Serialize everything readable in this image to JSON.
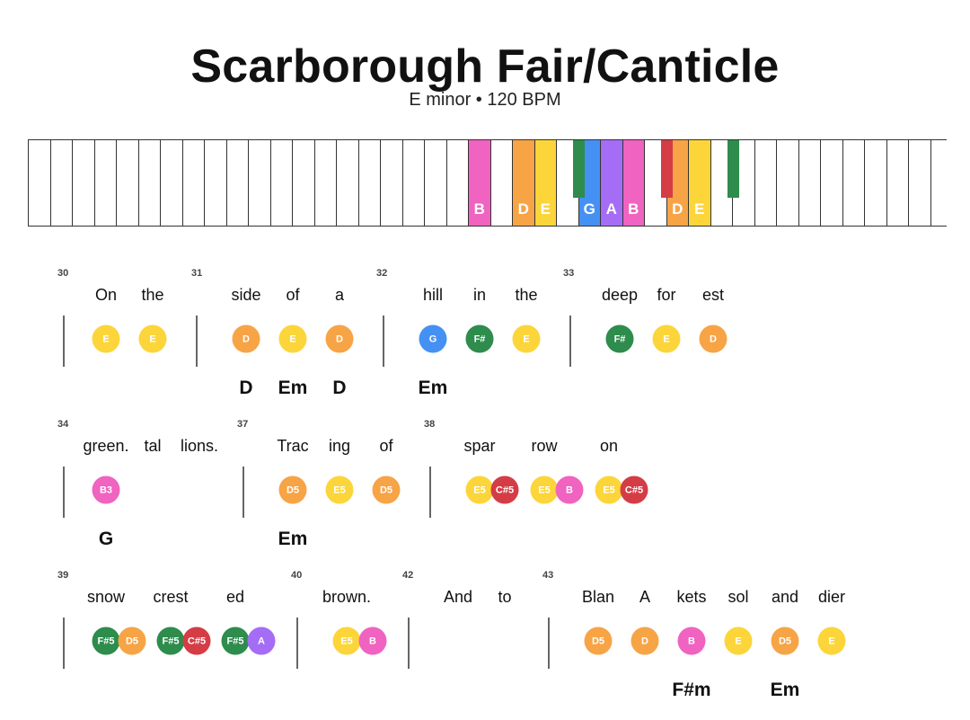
{
  "title": "Scarborough Fair/Canticle",
  "subtitle": "E minor • 120 BPM",
  "colors": {
    "B": "#f063c0",
    "D": "#f7a446",
    "E": "#fcd53a",
    "G": "#4591f3",
    "A": "#a56df5",
    "F#": "#2e8c4c",
    "C#": "#d43d46"
  },
  "keyboard": {
    "white_key_count": 42,
    "highlighted_white": [
      {
        "index": 20,
        "label": "B",
        "note": "B"
      },
      {
        "index": 22,
        "label": "D",
        "note": "D"
      },
      {
        "index": 23,
        "label": "E",
        "note": "E"
      },
      {
        "index": 25,
        "label": "G",
        "note": "G"
      },
      {
        "index": 26,
        "label": "A",
        "note": "A"
      },
      {
        "index": 27,
        "label": "B",
        "note": "B"
      },
      {
        "index": 29,
        "label": "D",
        "note": "D"
      },
      {
        "index": 30,
        "label": "E",
        "note": "E"
      }
    ],
    "highlighted_black": [
      {
        "after_white_index": 24,
        "note": "F#"
      },
      {
        "after_white_index": 28,
        "note": "C#"
      },
      {
        "after_white_index": 31,
        "note": "F#"
      }
    ]
  },
  "rows": [
    {
      "measures": [
        {
          "number": "30",
          "barline": true
        },
        {
          "number": "31",
          "barline": true
        },
        {
          "number": "32",
          "barline": true
        },
        {
          "number": "33",
          "barline": true
        }
      ],
      "lyrics": [
        "On",
        "the",
        "side",
        "of",
        "a",
        "hill",
        "in",
        "the",
        "deep",
        "for",
        "est"
      ],
      "notes": [
        "E",
        "E",
        "D",
        "E",
        "D",
        "G",
        "F#",
        "E",
        "F#",
        "E",
        "D"
      ],
      "chords": [
        "D",
        "Em",
        "D",
        "Em"
      ]
    },
    {
      "measures": [
        {
          "number": "34",
          "barline": true
        },
        {
          "number": "37",
          "barline": true
        },
        {
          "number": "38",
          "barline": true
        }
      ],
      "lyrics": [
        "green.",
        "tal",
        "lions.",
        "Trac",
        "ing",
        "of",
        "spar",
        "row",
        "on"
      ],
      "notes": [
        "B3",
        "D5",
        "E5",
        "D5",
        "E5",
        "C#5",
        "E5",
        "B",
        "E5",
        "C#5"
      ],
      "chords": [
        "G",
        "Em"
      ]
    },
    {
      "measures": [
        {
          "number": "39",
          "barline": true
        },
        {
          "number": "40",
          "barline": true
        },
        {
          "number": "42",
          "barline": true
        },
        {
          "number": "43",
          "barline": true
        }
      ],
      "lyrics": [
        "snow",
        "crest",
        "ed",
        "brown.",
        "And",
        "to",
        "Blan",
        "A",
        "kets",
        "sol",
        "and",
        "dier"
      ],
      "notes": [
        "F#5",
        "D5",
        "F#5",
        "C#5",
        "F#5",
        "A",
        "E5",
        "B",
        "D5",
        "D",
        "B",
        "E",
        "D5",
        "E"
      ],
      "chords": [
        "F#m",
        "Em"
      ]
    }
  ]
}
